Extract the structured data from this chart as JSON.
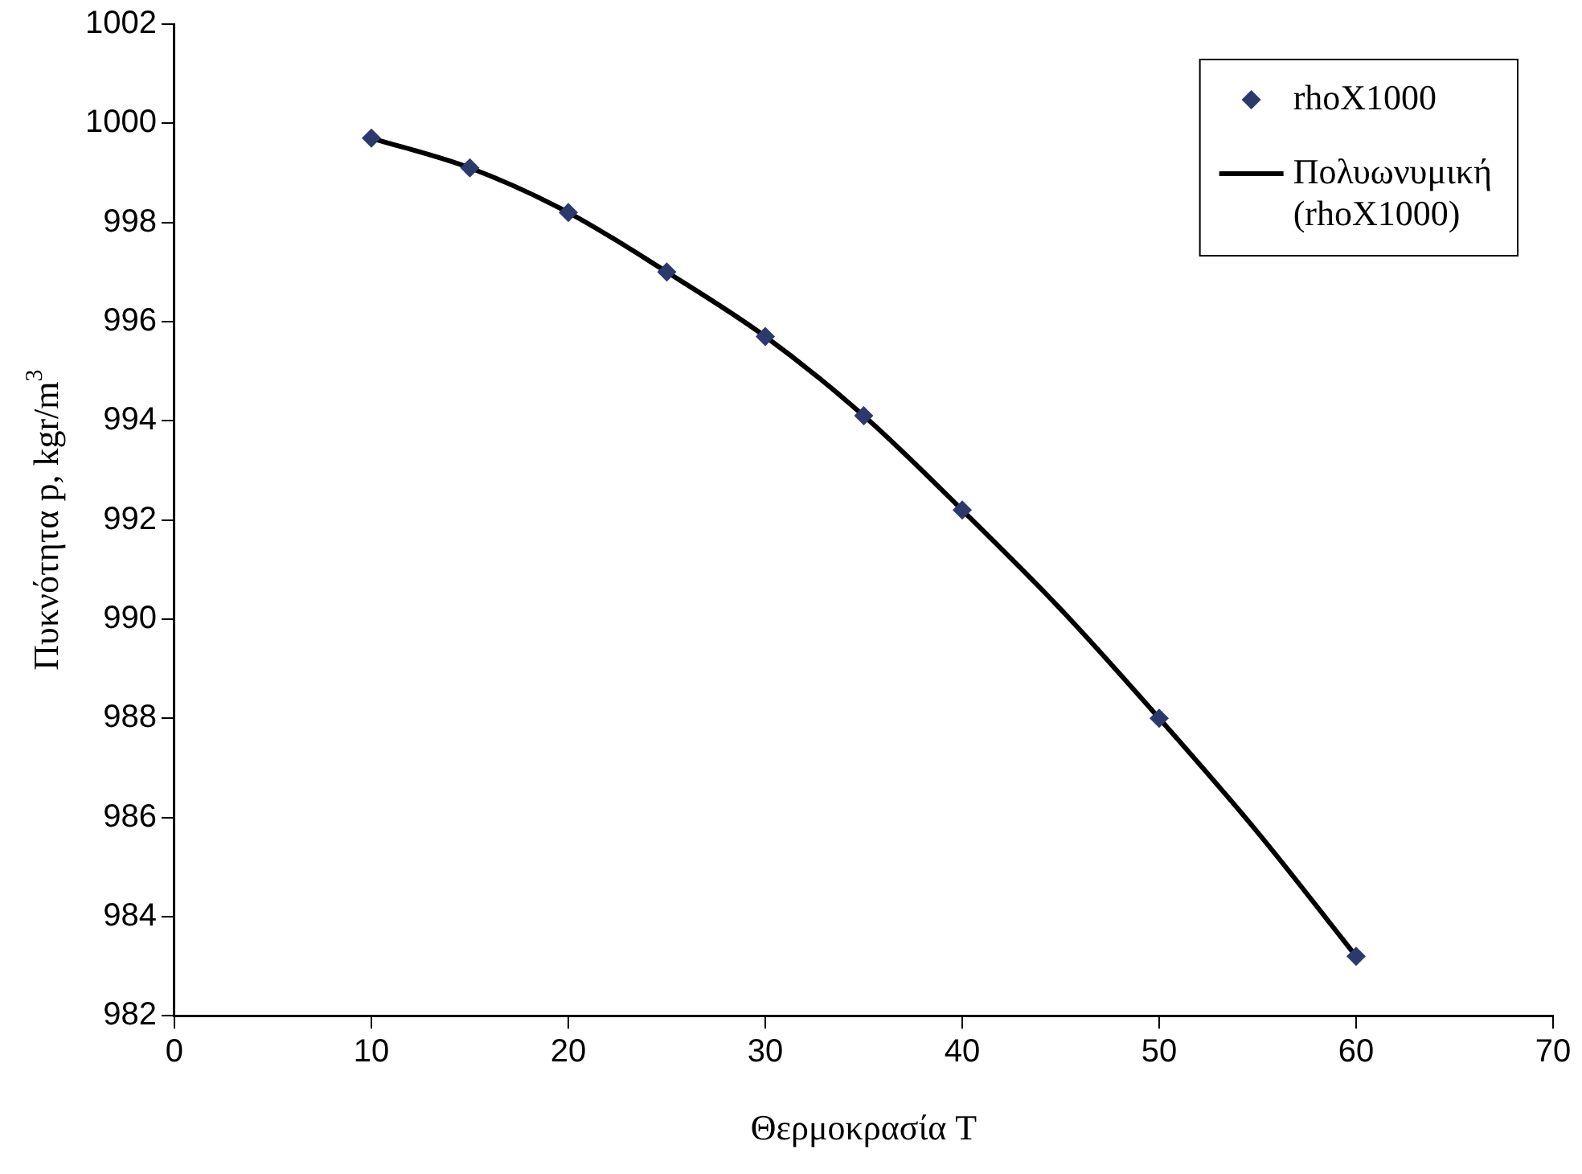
{
  "chart_data": {
    "type": "scatter",
    "xlabel": "Θερμοκρασία T",
    "ylabel": "Πυκνότητα p, kgr/m$^{3}$",
    "x": [
      10,
      15,
      20,
      25,
      30,
      35,
      40,
      50,
      60
    ],
    "series": [
      {
        "name": "rhoX1000",
        "type": "scatter",
        "color": "#2b3a6b",
        "marker": "diamond",
        "values": [
          999.7,
          999.1,
          998.2,
          997.0,
          995.7,
          994.1,
          992.2,
          988.0,
          983.2
        ]
      },
      {
        "name": "Πολυωνυμική (rhoX1000)",
        "type": "line",
        "color": "#000000",
        "marker": "none",
        "line_style": "solid",
        "x": [
          10,
          15,
          20,
          25,
          30,
          35,
          40,
          45,
          50,
          55,
          60
        ],
        "values": [
          999.7,
          999.1,
          998.2,
          997.0,
          995.7,
          994.1,
          992.2,
          990.2,
          988.0,
          985.7,
          983.2
        ]
      }
    ],
    "xlim": [
      0,
      70
    ],
    "xticks": [
      0,
      10,
      20,
      30,
      40,
      50,
      60,
      70
    ],
    "ylim": [
      982,
      1002
    ],
    "yticks": [
      982,
      984,
      986,
      988,
      990,
      992,
      994,
      996,
      998,
      1000,
      1002
    ],
    "grid": false,
    "legend": "top right"
  }
}
